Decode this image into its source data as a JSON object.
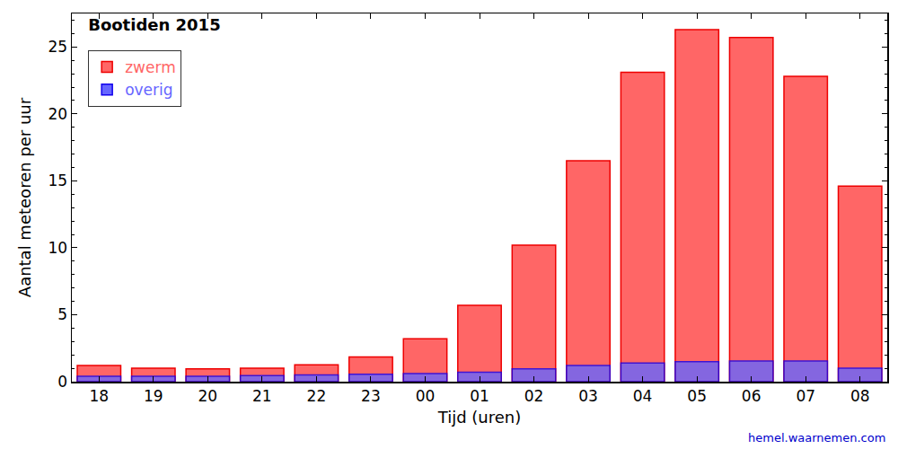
{
  "chart_data": {
    "type": "bar",
    "title": "Bootiden 2015",
    "x_label": "Tijd (uren)",
    "y_label": "Aantal meteoren per uur",
    "source": "hemel.waarnemen.com",
    "categories": [
      "18",
      "19",
      "20",
      "21",
      "22",
      "23",
      "00",
      "01",
      "02",
      "03",
      "04",
      "05",
      "06",
      "07",
      "08"
    ],
    "series": [
      {
        "name": "zwerm",
        "color": "#ff6666",
        "values": [
          1.2,
          1.0,
          0.95,
          1.0,
          1.25,
          1.85,
          3.2,
          5.7,
          10.2,
          16.5,
          23.1,
          26.3,
          25.7,
          22.8,
          14.6
        ]
      },
      {
        "name": "overig",
        "color": "#6666ff",
        "values": [
          0.4,
          0.4,
          0.4,
          0.45,
          0.5,
          0.55,
          0.6,
          0.7,
          0.95,
          1.2,
          1.4,
          1.5,
          1.55,
          1.55,
          1.0
        ]
      }
    ],
    "ylim": [
      0,
      27.5
    ],
    "yticks": [
      0,
      5,
      10,
      15,
      20,
      25
    ],
    "legend": "top-left",
    "grid": false
  }
}
